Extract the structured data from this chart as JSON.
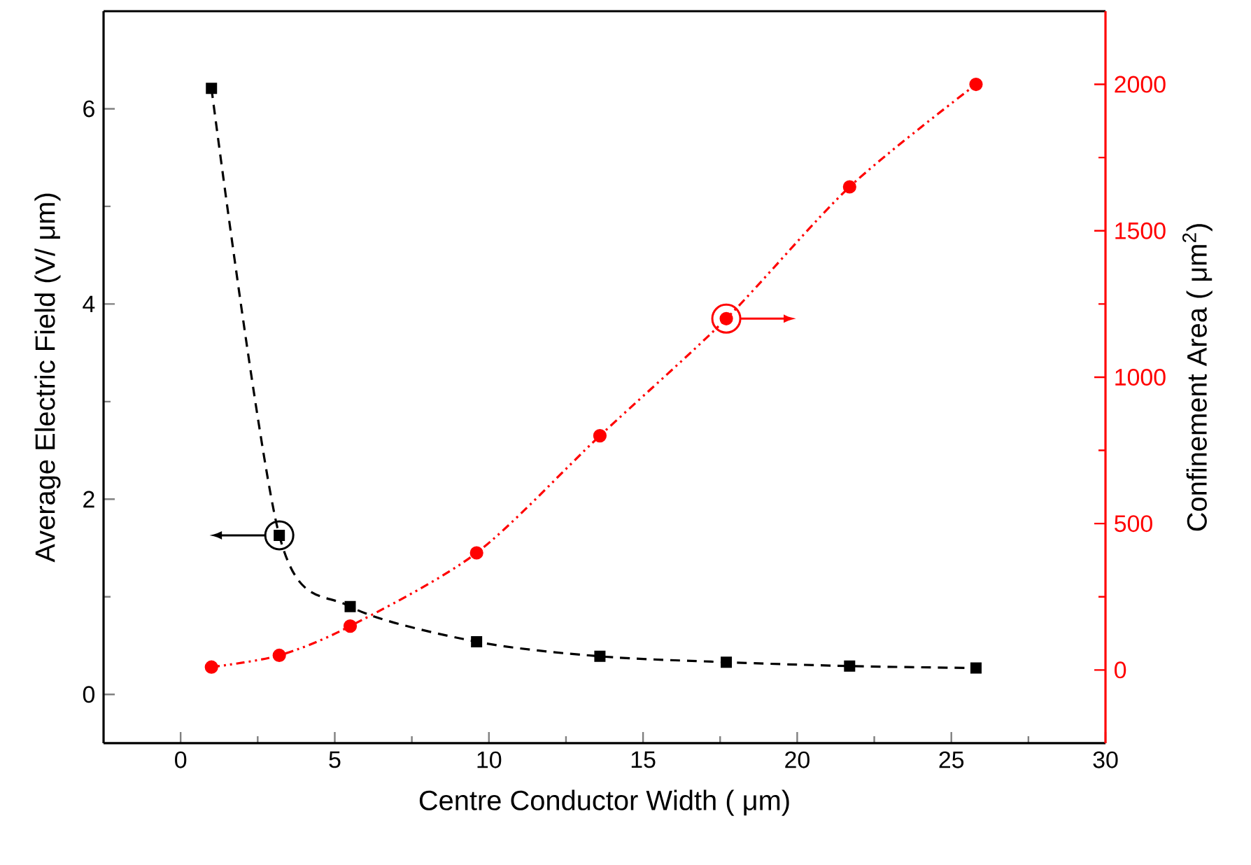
{
  "chart_data": {
    "type": "line",
    "xlabel": "Centre Conductor Width ( μm)",
    "ylabel": "Average Electric Field (V/ μm)",
    "y2label": "Confinement Area ( μm$^{2}$)",
    "xlim": [
      -2.5,
      30
    ],
    "xticks": [
      0,
      5,
      10,
      15,
      20,
      25,
      30
    ],
    "ylim": [
      -0.5,
      7
    ],
    "yticks": [
      0,
      2,
      4,
      6
    ],
    "y2lim": [
      -250,
      2250
    ],
    "y2ticks": [
      0,
      500,
      1000,
      1500,
      2000
    ],
    "grid": false,
    "legend": false,
    "x": [
      1,
      3.2,
      5.5,
      9.6,
      13.6,
      17.7,
      21.7,
      25.8
    ],
    "series": [
      {
        "color": "#000000",
        "marker": "square",
        "line_style": "dashed",
        "values": [
          6.21,
          1.63,
          0.9,
          0.54,
          0.39,
          0.33,
          0.29,
          0.27
        ]
      },
      {
        "color": "#ff0000",
        "marker": "circle",
        "line_style": "dashdotdotted",
        "axis": "y2",
        "values": [
          10,
          50,
          150,
          400,
          800,
          1200,
          1650,
          2000
        ]
      }
    ]
  }
}
